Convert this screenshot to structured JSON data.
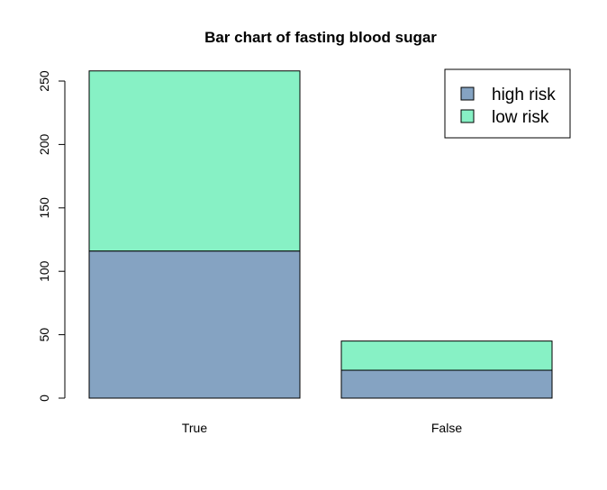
{
  "chart_data": {
    "type": "bar",
    "stacked": true,
    "title": "Bar chart of fasting blood sugar",
    "xlabel": "",
    "ylabel": "",
    "categories": [
      "True",
      "False"
    ],
    "series": [
      {
        "name": "high risk",
        "values": [
          116,
          22
        ],
        "color": "#85a3c2"
      },
      {
        "name": "low risk",
        "values": [
          142,
          23
        ],
        "color": "#87f1c5"
      }
    ],
    "ylim": [
      0,
      260
    ],
    "yticks": [
      0,
      50,
      100,
      150,
      200,
      250
    ],
    "legend_position": "top-right",
    "grid": false
  }
}
